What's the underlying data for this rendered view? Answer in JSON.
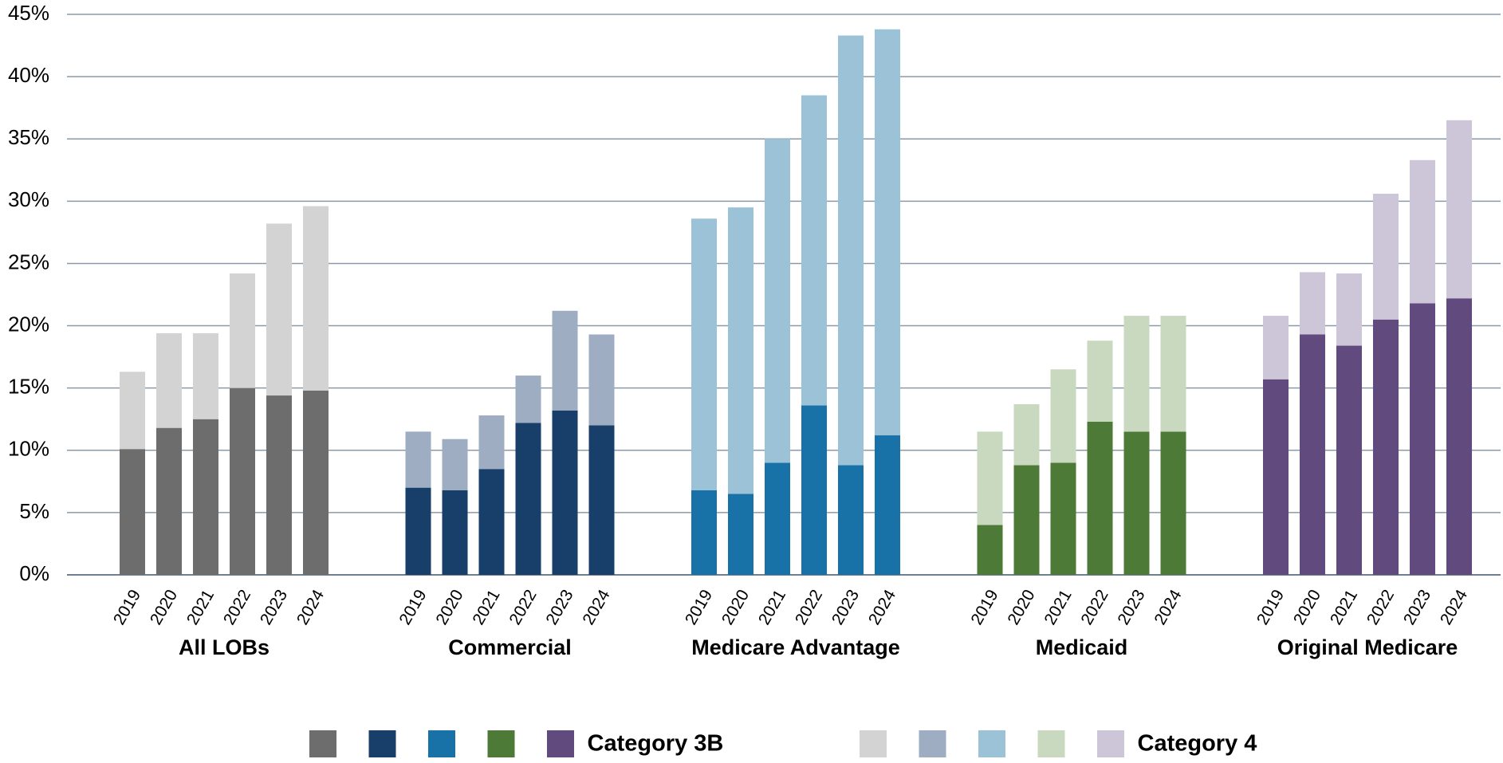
{
  "chart_data": {
    "type": "bar",
    "stacked": true,
    "categories": [
      "2019",
      "2020",
      "2021",
      "2022",
      "2023",
      "2024"
    ],
    "groups": [
      "All LOBs",
      "Commercial",
      "Medicare Advantage",
      "Medicaid",
      "Original Medicare"
    ],
    "series": [
      {
        "name": "Category 3B",
        "colors": [
          "#6d6d6d",
          "#173f69",
          "#1872a8",
          "#4e7a38",
          "#614a7e"
        ],
        "values": [
          [
            10.1,
            11.8,
            12.5,
            15.0,
            14.4,
            14.8
          ],
          [
            7.0,
            6.8,
            8.5,
            12.2,
            13.2,
            12.0
          ],
          [
            6.8,
            6.5,
            9.0,
            13.6,
            8.8,
            11.2
          ],
          [
            4.0,
            8.8,
            9.0,
            12.3,
            11.5,
            11.5
          ],
          [
            15.7,
            19.3,
            18.4,
            20.5,
            21.8,
            22.2
          ]
        ]
      },
      {
        "name": "Category 4",
        "colors": [
          "#d3d3d3",
          "#9eadc2",
          "#9cc2d8",
          "#c9d9bf",
          "#cdc6d9"
        ],
        "values": [
          [
            6.2,
            7.6,
            6.9,
            9.2,
            13.8,
            14.8
          ],
          [
            4.5,
            4.1,
            4.3,
            3.8,
            8.0,
            7.3
          ],
          [
            21.8,
            23.0,
            26.0,
            24.9,
            34.5,
            32.6
          ],
          [
            7.5,
            4.9,
            7.5,
            6.5,
            9.3,
            9.3
          ],
          [
            5.1,
            5.0,
            5.8,
            10.1,
            11.5,
            14.3
          ]
        ]
      }
    ],
    "ylim": [
      0,
      45
    ],
    "yticks": [
      {
        "value": 0,
        "label": "0%"
      },
      {
        "value": 5,
        "label": "5%"
      },
      {
        "value": 10,
        "label": "10%"
      },
      {
        "value": 15,
        "label": "15%"
      },
      {
        "value": 20,
        "label": "20%"
      },
      {
        "value": 25,
        "label": "25%"
      },
      {
        "value": 30,
        "label": "30%"
      },
      {
        "value": 35,
        "label": "35%"
      },
      {
        "value": 40,
        "label": "40%"
      },
      {
        "value": 45,
        "label": "45%"
      }
    ],
    "grid": true
  }
}
